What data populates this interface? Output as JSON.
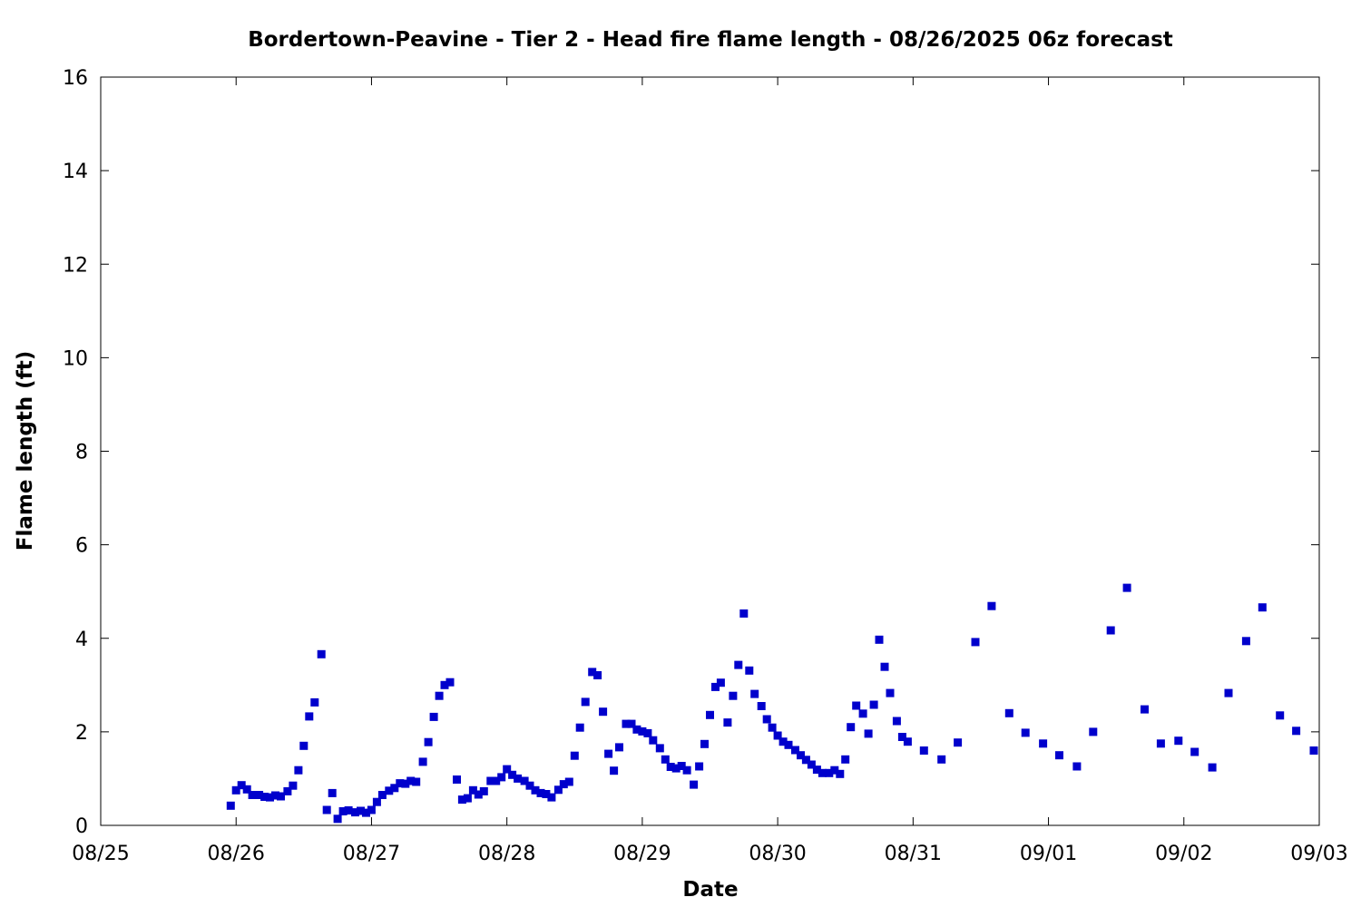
{
  "chart_data": {
    "type": "scatter",
    "title": "Bordertown-Peavine - Tier 2 - Head fire flame length - 08/26/2025 06z forecast",
    "xlabel": "Date",
    "ylabel": "Flame length (ft)",
    "x_unit": "days",
    "xlim": [
      0,
      9
    ],
    "ylim": [
      0,
      16
    ],
    "x_ticks": [
      {
        "value": 0,
        "label": "08/25"
      },
      {
        "value": 1,
        "label": "08/26"
      },
      {
        "value": 2,
        "label": "08/27"
      },
      {
        "value": 3,
        "label": "08/28"
      },
      {
        "value": 4,
        "label": "08/29"
      },
      {
        "value": 5,
        "label": "08/30"
      },
      {
        "value": 6,
        "label": "08/31"
      },
      {
        "value": 7,
        "label": "09/01"
      },
      {
        "value": 8,
        "label": "09/02"
      },
      {
        "value": 9,
        "label": "09/03"
      }
    ],
    "y_ticks": [
      0,
      2,
      4,
      6,
      8,
      10,
      12,
      14,
      16
    ],
    "grid": false,
    "marker_color": "#0000CC",
    "series": [
      {
        "name": "",
        "points": [
          [
            0.96,
            0.42
          ],
          [
            1.0,
            0.75
          ],
          [
            1.04,
            0.86
          ],
          [
            1.08,
            0.77
          ],
          [
            1.12,
            0.65
          ],
          [
            1.17,
            0.65
          ],
          [
            1.21,
            0.61
          ],
          [
            1.25,
            0.6
          ],
          [
            1.29,
            0.64
          ],
          [
            1.33,
            0.62
          ],
          [
            1.38,
            0.73
          ],
          [
            1.42,
            0.85
          ],
          [
            1.46,
            1.18
          ],
          [
            1.5,
            1.7
          ],
          [
            1.54,
            2.33
          ],
          [
            1.58,
            2.63
          ],
          [
            1.63,
            3.66
          ],
          [
            1.67,
            0.33
          ],
          [
            1.71,
            0.69
          ],
          [
            1.75,
            0.14
          ],
          [
            1.79,
            0.3
          ],
          [
            1.83,
            0.32
          ],
          [
            1.88,
            0.28
          ],
          [
            1.92,
            0.31
          ],
          [
            1.96,
            0.27
          ],
          [
            2.0,
            0.33
          ],
          [
            2.04,
            0.5
          ],
          [
            2.08,
            0.65
          ],
          [
            2.13,
            0.74
          ],
          [
            2.17,
            0.8
          ],
          [
            2.21,
            0.9
          ],
          [
            2.25,
            0.89
          ],
          [
            2.29,
            0.95
          ],
          [
            2.33,
            0.93
          ],
          [
            2.38,
            1.36
          ],
          [
            2.42,
            1.78
          ],
          [
            2.46,
            2.32
          ],
          [
            2.5,
            2.77
          ],
          [
            2.54,
            3.0
          ],
          [
            2.58,
            3.06
          ],
          [
            2.63,
            0.98
          ],
          [
            2.67,
            0.55
          ],
          [
            2.71,
            0.58
          ],
          [
            2.75,
            0.75
          ],
          [
            2.79,
            0.66
          ],
          [
            2.83,
            0.73
          ],
          [
            2.88,
            0.95
          ],
          [
            2.92,
            0.95
          ],
          [
            2.96,
            1.03
          ],
          [
            3.0,
            1.2
          ],
          [
            3.04,
            1.08
          ],
          [
            3.08,
            1.0
          ],
          [
            3.13,
            0.95
          ],
          [
            3.17,
            0.85
          ],
          [
            3.21,
            0.75
          ],
          [
            3.25,
            0.69
          ],
          [
            3.29,
            0.67
          ],
          [
            3.33,
            0.6
          ],
          [
            3.38,
            0.76
          ],
          [
            3.42,
            0.88
          ],
          [
            3.46,
            0.93
          ],
          [
            3.5,
            1.49
          ],
          [
            3.54,
            2.09
          ],
          [
            3.58,
            2.64
          ],
          [
            3.63,
            3.28
          ],
          [
            3.67,
            3.21
          ],
          [
            3.71,
            2.43
          ],
          [
            3.75,
            1.53
          ],
          [
            3.79,
            1.17
          ],
          [
            3.83,
            1.67
          ],
          [
            3.88,
            2.17
          ],
          [
            3.92,
            2.17
          ],
          [
            3.96,
            2.05
          ],
          [
            4.0,
            2.01
          ],
          [
            4.04,
            1.97
          ],
          [
            4.08,
            1.82
          ],
          [
            4.13,
            1.65
          ],
          [
            4.17,
            1.41
          ],
          [
            4.21,
            1.25
          ],
          [
            4.25,
            1.22
          ],
          [
            4.29,
            1.27
          ],
          [
            4.33,
            1.18
          ],
          [
            4.38,
            0.87
          ],
          [
            4.42,
            1.26
          ],
          [
            4.46,
            1.74
          ],
          [
            4.5,
            2.36
          ],
          [
            4.54,
            2.96
          ],
          [
            4.58,
            3.05
          ],
          [
            4.63,
            2.2
          ],
          [
            4.67,
            2.77
          ],
          [
            4.71,
            3.43
          ],
          [
            4.75,
            4.53
          ],
          [
            4.79,
            3.31
          ],
          [
            4.83,
            2.81
          ],
          [
            4.88,
            2.55
          ],
          [
            4.92,
            2.27
          ],
          [
            4.96,
            2.09
          ],
          [
            5.0,
            1.92
          ],
          [
            5.04,
            1.79
          ],
          [
            5.08,
            1.72
          ],
          [
            5.13,
            1.61
          ],
          [
            5.17,
            1.5
          ],
          [
            5.21,
            1.4
          ],
          [
            5.25,
            1.3
          ],
          [
            5.29,
            1.19
          ],
          [
            5.33,
            1.12
          ],
          [
            5.38,
            1.12
          ],
          [
            5.42,
            1.18
          ],
          [
            5.46,
            1.1
          ],
          [
            5.5,
            1.41
          ],
          [
            5.54,
            2.1
          ],
          [
            5.58,
            2.56
          ],
          [
            5.63,
            2.39
          ],
          [
            5.67,
            1.96
          ],
          [
            5.71,
            2.58
          ],
          [
            5.75,
            3.97
          ],
          [
            5.79,
            3.39
          ],
          [
            5.83,
            2.83
          ],
          [
            5.88,
            2.23
          ],
          [
            5.92,
            1.89
          ],
          [
            5.96,
            1.79
          ],
          [
            6.08,
            1.6
          ],
          [
            6.21,
            1.41
          ],
          [
            6.33,
            1.77
          ],
          [
            6.46,
            3.92
          ],
          [
            6.58,
            4.69
          ],
          [
            6.71,
            2.4
          ],
          [
            6.83,
            1.98
          ],
          [
            6.96,
            1.75
          ],
          [
            7.08,
            1.5
          ],
          [
            7.21,
            1.26
          ],
          [
            7.33,
            2.0
          ],
          [
            7.46,
            4.17
          ],
          [
            7.58,
            5.08
          ],
          [
            7.71,
            2.48
          ],
          [
            7.83,
            1.75
          ],
          [
            7.96,
            1.81
          ],
          [
            8.08,
            1.57
          ],
          [
            8.21,
            1.24
          ],
          [
            8.33,
            2.83
          ],
          [
            8.46,
            3.94
          ],
          [
            8.58,
            4.66
          ],
          [
            8.71,
            2.35
          ],
          [
            8.83,
            2.02
          ],
          [
            8.96,
            1.6
          ]
        ]
      }
    ]
  }
}
